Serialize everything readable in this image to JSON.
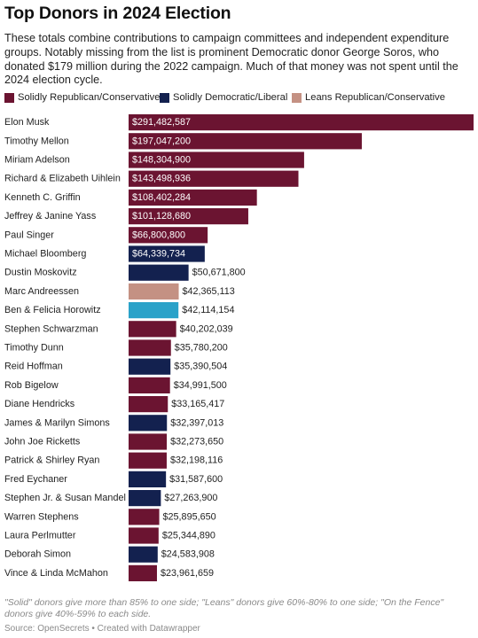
{
  "header": {
    "title": "Top Donors in 2024 Election",
    "subtitle": "These totals combine contributions to campaign committees and independent expenditure groups. Notably missing from the list is prominent Democratic donor George Soros, who donated $179 million during the 2022 campaign. Much of that money was not spent until the 2024 election cycle."
  },
  "legend": [
    {
      "label": "Solidly Republican/Conservative",
      "color": "#6b1431"
    },
    {
      "label": "Solidly Democratic/Liberal",
      "color": "#13214f"
    },
    {
      "label": "Leans Republican/Conservative",
      "color": "#c49183"
    }
  ],
  "footer": {
    "note": "\"Solid\" donors give more than 85% to one side; \"Leans\" donors give 60%-80% to one side; \"On the Fence\" donors give 40%-59% to each side.",
    "source": "Source: OpenSecrets • Created with Datawrapper"
  },
  "chart_data": {
    "type": "bar",
    "orientation": "horizontal",
    "title": "Top Donors in 2024 Election",
    "categories": [
      "Elon Musk",
      "Timothy Mellon",
      "Miriam Adelson",
      "Richard & Elizabeth Uihlein",
      "Kenneth C. Griffin",
      "Jeffrey & Janine Yass",
      "Paul Singer",
      "Michael Bloomberg",
      "Dustin Moskovitz",
      "Marc Andreessen",
      "Ben & Felicia Horowitz",
      "Stephen Schwarzman",
      "Timothy Dunn",
      "Reid Hoffman",
      "Rob Bigelow",
      "Diane Hendricks",
      "James & Marilyn Simons",
      "John Joe Ricketts",
      "Patrick & Shirley Ryan",
      "Fred Eychaner",
      "Stephen Jr. & Susan Mandel",
      "Warren Stephens",
      "Laura Perlmutter",
      "Deborah Simon",
      "Vince & Linda McMahon"
    ],
    "values": [
      291482587,
      197047200,
      148304900,
      143498936,
      108402284,
      101128680,
      66800800,
      64339734,
      50671800,
      42365113,
      42114154,
      40202039,
      35780200,
      35390504,
      34991500,
      33165417,
      32397013,
      32273650,
      32198116,
      31587600,
      27263900,
      25895650,
      25344890,
      24583908,
      23961659
    ],
    "value_labels": [
      "$291,482,587",
      "$197,047,200",
      "$148,304,900",
      "$143,498,936",
      "$108,402,284",
      "$101,128,680",
      "$66,800,800",
      "$64,339,734",
      "$50,671,800",
      "$42,365,113",
      "$42,114,154",
      "$40,202,039",
      "$35,780,200",
      "$35,390,504",
      "$34,991,500",
      "$33,165,417",
      "$32,397,013",
      "$32,273,650",
      "$32,198,116",
      "$31,587,600",
      "$27,263,900",
      "$25,895,650",
      "$25,344,890",
      "$24,583,908",
      "$23,961,659"
    ],
    "colors": [
      "#6b1431",
      "#6b1431",
      "#6b1431",
      "#6b1431",
      "#6b1431",
      "#6b1431",
      "#6b1431",
      "#13214f",
      "#13214f",
      "#c49183",
      "#2aa2c9",
      "#6b1431",
      "#6b1431",
      "#13214f",
      "#6b1431",
      "#6b1431",
      "#13214f",
      "#6b1431",
      "#6b1431",
      "#13214f",
      "#13214f",
      "#6b1431",
      "#6b1431",
      "#13214f",
      "#6b1431"
    ],
    "xlim": [
      0,
      291482587
    ],
    "grid": false,
    "legend_position": "top-left"
  }
}
